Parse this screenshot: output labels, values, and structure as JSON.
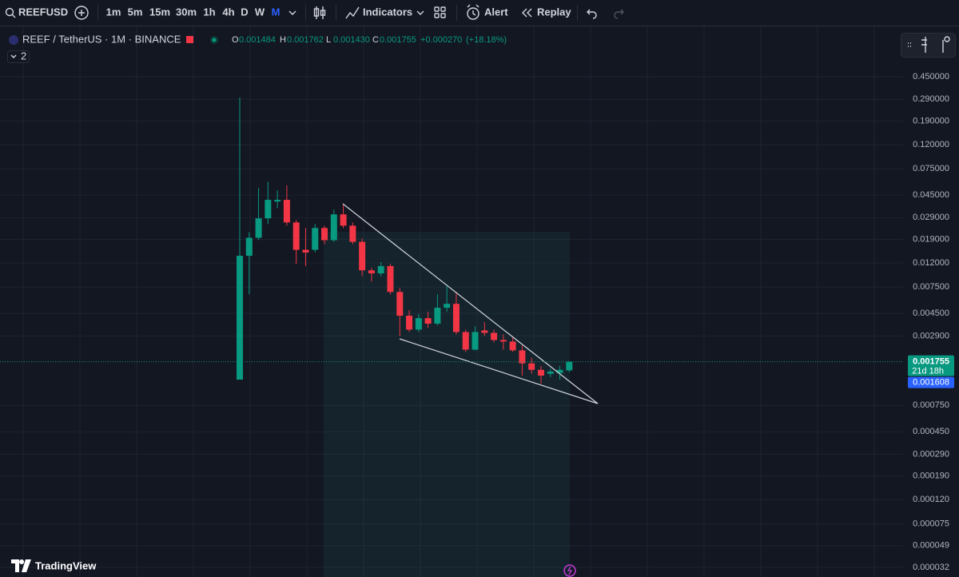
{
  "toolbar": {
    "symbol": "REEFUSD",
    "intervals": [
      "1m",
      "5m",
      "15m",
      "30m",
      "1h",
      "4h",
      "D",
      "W",
      "M"
    ],
    "indicators": "Indicators",
    "alert": "Alert",
    "replay": "Replay"
  },
  "legend": {
    "title": "REEF / TetherUS · 1M · BINANCE",
    "labels": [
      "O",
      "H",
      "L",
      "C"
    ],
    "ohlc_values": [
      "0.001484",
      "0.001762",
      "0.001430",
      "0.001755"
    ],
    "change": "+0.000270",
    "change_percent": "(+18.18%)",
    "collapsed_count": 2
  },
  "chart_data": {
    "type": "candlestick",
    "log_scale": true,
    "grid": true,
    "up_color": "#089981",
    "down_color": "#f23645",
    "open": [
      0.00124,
      0.0138,
      0.0196,
      0.0286,
      0.0397,
      0.041,
      0.0264,
      0.0155,
      0.0155,
      0.0237,
      0.0187,
      0.0309,
      0.0248,
      0.0181,
      0.0104,
      0.0098,
      0.0113,
      0.00683,
      0.0043,
      0.00328,
      0.0041,
      0.00368,
      0.00502,
      0.00542,
      0.00313,
      0.00222,
      0.00323,
      0.00308,
      0.00268,
      0.0026,
      0.00219,
      0.0017,
      0.0015,
      0.00139,
      0.00141,
      0.001484
    ],
    "high": [
      0.3,
      0.0219,
      0.0518,
      0.0582,
      0.0494,
      0.0542,
      0.0277,
      0.0237,
      0.0256,
      0.0248,
      0.0339,
      0.0379,
      0.0264,
      0.0193,
      0.0109,
      0.0122,
      0.0118,
      0.00738,
      0.00479,
      0.00443,
      0.00464,
      0.00652,
      0.00762,
      0.00683,
      0.00328,
      0.00349,
      0.00379,
      0.00328,
      0.00299,
      0.00281,
      0.00241,
      0.0019,
      0.00162,
      0.00153,
      0.00162,
      0.001762
    ],
    "low": [
      0.00124,
      0.00652,
      0.0187,
      0.0256,
      0.0348,
      0.0248,
      0.0118,
      0.0113,
      0.0147,
      0.0173,
      0.0181,
      0.0237,
      0.0173,
      0.00928,
      0.00836,
      0.00928,
      0.00652,
      0.0029,
      0.00313,
      0.00313,
      0.00339,
      0.00355,
      0.00464,
      0.00299,
      0.00212,
      0.00219,
      0.0029,
      0.00256,
      0.00222,
      0.00212,
      0.00134,
      0.00139,
      0.00115,
      0.0013,
      0.00124,
      0.00143
    ],
    "close": [
      0.0138,
      0.0196,
      0.0286,
      0.041,
      0.041,
      0.0264,
      0.0155,
      0.0147,
      0.0237,
      0.0187,
      0.0309,
      0.0248,
      0.0181,
      0.0104,
      0.0098,
      0.0113,
      0.00683,
      0.0043,
      0.00328,
      0.0041,
      0.00368,
      0.00502,
      0.00542,
      0.00313,
      0.00222,
      0.00313,
      0.00308,
      0.00268,
      0.0026,
      0.00219,
      0.0017,
      0.0015,
      0.00134,
      0.00145,
      0.0015,
      0.001755
    ],
    "ylim": [
      2.66e-05,
      0.764
    ],
    "yticks": [
      {
        "value": 0.45,
        "label": "0.450000"
      },
      {
        "value": 0.29,
        "label": "0.290000"
      },
      {
        "value": 0.19,
        "label": "0.190000"
      },
      {
        "value": 0.12,
        "label": "0.120000"
      },
      {
        "value": 0.075,
        "label": "0.075000"
      },
      {
        "value": 0.045,
        "label": "0.045000"
      },
      {
        "value": 0.029,
        "label": "0.029000"
      },
      {
        "value": 0.019,
        "label": "0.019000"
      },
      {
        "value": 0.012,
        "label": "0.012000"
      },
      {
        "value": 0.0075,
        "label": "0.007500"
      },
      {
        "value": 0.0045,
        "label": "0.004500"
      },
      {
        "value": 0.0029,
        "label": "0.002900"
      },
      {
        "value": 0.00075,
        "label": "0.000750"
      },
      {
        "value": 0.00045,
        "label": "0.000450"
      },
      {
        "value": 0.00029,
        "label": "0.000290"
      },
      {
        "value": 0.00019,
        "label": "0.000190"
      },
      {
        "value": 0.00012,
        "label": "0.000120"
      },
      {
        "value": 7.5e-05,
        "label": "0.000075"
      },
      {
        "value": 4.9e-05,
        "label": "0.000049"
      },
      {
        "value": 3.2e-05,
        "label": "0.000032"
      }
    ]
  },
  "price_scale": {
    "countdown": "21d 18h",
    "secondary_label": "0.001608"
  },
  "branding": {
    "name": "TradingView"
  }
}
